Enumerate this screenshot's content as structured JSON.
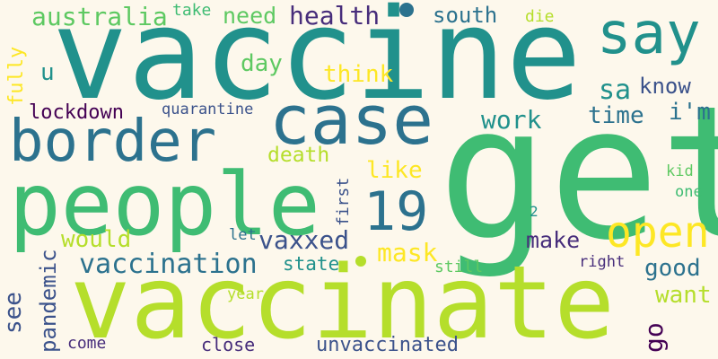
{
  "words": [
    {
      "text": "vaccine",
      "color": "#21918c"
    },
    {
      "text": "get",
      "color": "#3fbc73"
    },
    {
      "text": "vaccinate",
      "color": "#b5de2b"
    },
    {
      "text": "people",
      "color": "#3fbc73"
    },
    {
      "text": "border",
      "color": "#2c728e"
    },
    {
      "text": "case",
      "color": "#2c728e"
    },
    {
      "text": "say",
      "color": "#21918c"
    },
    {
      "text": "19",
      "color": "#2c728e"
    },
    {
      "text": "open",
      "color": "#fde725"
    },
    {
      "text": "australia",
      "color": "#5ec962"
    },
    {
      "text": "health",
      "color": "#472d7b"
    },
    {
      "text": "south",
      "color": "#2c728e"
    },
    {
      "text": "need",
      "color": "#5ec962"
    },
    {
      "text": "take",
      "color": "#3fbc73"
    },
    {
      "text": "die",
      "color": "#b5de2b"
    },
    {
      "text": "day",
      "color": "#5ec962"
    },
    {
      "text": "think",
      "color": "#fde725"
    },
    {
      "text": "u",
      "color": "#21918c"
    },
    {
      "text": "sa",
      "color": "#21918c"
    },
    {
      "text": "know",
      "color": "#3b528b"
    },
    {
      "text": "fully",
      "color": "#fde725"
    },
    {
      "text": "lockdown",
      "color": "#440154"
    },
    {
      "text": "quarantine",
      "color": "#3b528b"
    },
    {
      "text": "work",
      "color": "#21918c"
    },
    {
      "text": "time",
      "color": "#2c728e"
    },
    {
      "text": "i'm",
      "color": "#2c728e"
    },
    {
      "text": "death",
      "color": "#b5de2b"
    },
    {
      "text": "like",
      "color": "#fde725"
    },
    {
      "text": "first",
      "color": "#3b528b"
    },
    {
      "text": "kid",
      "color": "#5ec962"
    },
    {
      "text": "one",
      "color": "#3fbc73"
    },
    {
      "text": "2",
      "color": "#21918c"
    },
    {
      "text": "pandemic",
      "color": "#3b528b"
    },
    {
      "text": "would",
      "color": "#b5de2b"
    },
    {
      "text": "let",
      "color": "#2c728e"
    },
    {
      "text": "vaxxed",
      "color": "#3b528b"
    },
    {
      "text": "make",
      "color": "#472d7b"
    },
    {
      "text": "mask",
      "color": "#fde725"
    },
    {
      "text": "vaccination",
      "color": "#2c728e"
    },
    {
      "text": "state",
      "color": "#21918c"
    },
    {
      "text": "good",
      "color": "#2c728e"
    },
    {
      "text": "right",
      "color": "#472d7b"
    },
    {
      "text": "still",
      "color": "#5ec962"
    },
    {
      "text": "see",
      "color": "#3b528b"
    },
    {
      "text": "want",
      "color": "#b5de2b"
    },
    {
      "text": "go",
      "color": "#440154"
    },
    {
      "text": "year",
      "color": "#b5de2b"
    },
    {
      "text": "come",
      "color": "#472d7b"
    },
    {
      "text": "close",
      "color": "#472d7b"
    },
    {
      "text": "unvaccinated",
      "color": "#3b528b"
    }
  ],
  "dots": [
    {
      "color": "#2c728e"
    },
    {
      "color": "#b5de2b"
    }
  ]
}
